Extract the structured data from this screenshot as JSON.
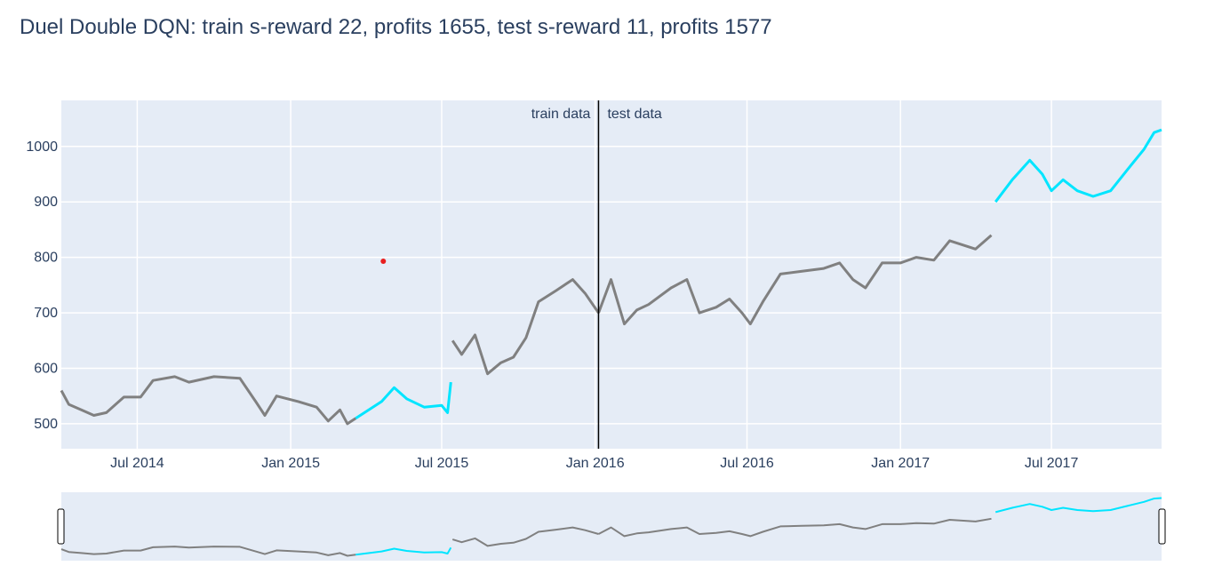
{
  "chart_data": {
    "type": "line",
    "title": "Duel Double DQN: train s-reward 22, profits 1655, test s-reward 11, profits 1577",
    "xlabel": "",
    "ylabel": "",
    "x_range": [
      "2014-04-01",
      "2017-11-10"
    ],
    "y_range": [
      455,
      1083
    ],
    "x_ticks": [
      {
        "date": "2014-07-01",
        "label": "Jul 2014"
      },
      {
        "date": "2015-01-01",
        "label": "Jan 2015"
      },
      {
        "date": "2015-07-01",
        "label": "Jul 2015"
      },
      {
        "date": "2016-01-01",
        "label": "Jan 2016"
      },
      {
        "date": "2016-07-01",
        "label": "Jul 2016"
      },
      {
        "date": "2017-01-01",
        "label": "Jan 2017"
      },
      {
        "date": "2017-07-01",
        "label": "Jul 2017"
      }
    ],
    "y_ticks": [
      500,
      600,
      700,
      800,
      900,
      1000
    ],
    "grid": true,
    "split_line": {
      "date": "2016-01-05",
      "left_label": "train data",
      "right_label": "test data"
    },
    "marker": {
      "date": "2015-04-22",
      "value": 793
    },
    "series": [
      {
        "color": "#808080",
        "points": [
          [
            "2014-04-01",
            560
          ],
          [
            "2014-04-10",
            535
          ],
          [
            "2014-04-25",
            525
          ],
          [
            "2014-05-10",
            515
          ],
          [
            "2014-05-25",
            520
          ],
          [
            "2014-06-15",
            548
          ],
          [
            "2014-07-05",
            548
          ],
          [
            "2014-07-20",
            578
          ],
          [
            "2014-08-15",
            585
          ],
          [
            "2014-09-01",
            575
          ],
          [
            "2014-10-01",
            585
          ],
          [
            "2014-11-01",
            582
          ],
          [
            "2014-11-20",
            540
          ],
          [
            "2014-12-01",
            515
          ],
          [
            "2014-12-15",
            550
          ],
          [
            "2015-01-10",
            540
          ],
          [
            "2015-02-01",
            530
          ],
          [
            "2015-02-15",
            505
          ],
          [
            "2015-03-01",
            525
          ],
          [
            "2015-03-10",
            500
          ],
          [
            "2015-03-20",
            510
          ]
        ]
      },
      {
        "color": "#00e5ff",
        "points": [
          [
            "2015-03-20",
            510
          ],
          [
            "2015-04-20",
            540
          ],
          [
            "2015-05-05",
            565
          ],
          [
            "2015-05-20",
            545
          ],
          [
            "2015-06-10",
            530
          ],
          [
            "2015-07-01",
            533
          ],
          [
            "2015-07-08",
            520
          ],
          [
            "2015-07-12",
            575
          ]
        ]
      },
      {
        "color": "#808080",
        "points": [
          [
            "2015-07-14",
            650
          ],
          [
            "2015-07-25",
            625
          ],
          [
            "2015-08-10",
            660
          ],
          [
            "2015-08-25",
            590
          ],
          [
            "2015-09-10",
            610
          ],
          [
            "2015-09-25",
            620
          ],
          [
            "2015-10-10",
            655
          ],
          [
            "2015-10-25",
            720
          ],
          [
            "2015-11-15",
            740
          ],
          [
            "2015-12-05",
            760
          ],
          [
            "2015-12-20",
            735
          ],
          [
            "2016-01-05",
            700
          ]
        ]
      },
      {
        "color": "#808080",
        "points": [
          [
            "2016-01-05",
            700
          ],
          [
            "2016-01-20",
            760
          ],
          [
            "2016-02-05",
            680
          ],
          [
            "2016-02-20",
            705
          ],
          [
            "2016-03-05",
            715
          ],
          [
            "2016-04-01",
            745
          ],
          [
            "2016-04-20",
            760
          ],
          [
            "2016-05-05",
            700
          ],
          [
            "2016-05-25",
            710
          ],
          [
            "2016-06-10",
            725
          ],
          [
            "2016-06-25",
            700
          ],
          [
            "2016-07-05",
            680
          ],
          [
            "2016-07-20",
            720
          ],
          [
            "2016-08-10",
            770
          ],
          [
            "2016-09-05",
            775
          ],
          [
            "2016-10-01",
            780
          ],
          [
            "2016-10-20",
            790
          ],
          [
            "2016-11-05",
            760
          ],
          [
            "2016-11-20",
            745
          ],
          [
            "2016-12-10",
            790
          ],
          [
            "2017-01-01",
            790
          ],
          [
            "2017-01-20",
            800
          ],
          [
            "2017-02-10",
            795
          ],
          [
            "2017-03-01",
            830
          ],
          [
            "2017-04-01",
            815
          ],
          [
            "2017-04-20",
            840
          ]
        ]
      },
      {
        "color": "#00e5ff",
        "points": [
          [
            "2017-04-25",
            900
          ],
          [
            "2017-05-15",
            940
          ],
          [
            "2017-06-05",
            975
          ],
          [
            "2017-06-20",
            950
          ],
          [
            "2017-07-01",
            920
          ],
          [
            "2017-07-15",
            940
          ],
          [
            "2017-08-01",
            920
          ],
          [
            "2017-08-20",
            910
          ],
          [
            "2017-09-10",
            920
          ],
          [
            "2017-10-01",
            960
          ],
          [
            "2017-10-20",
            995
          ],
          [
            "2017-11-01",
            1025
          ],
          [
            "2017-11-10",
            1030
          ]
        ]
      }
    ]
  }
}
